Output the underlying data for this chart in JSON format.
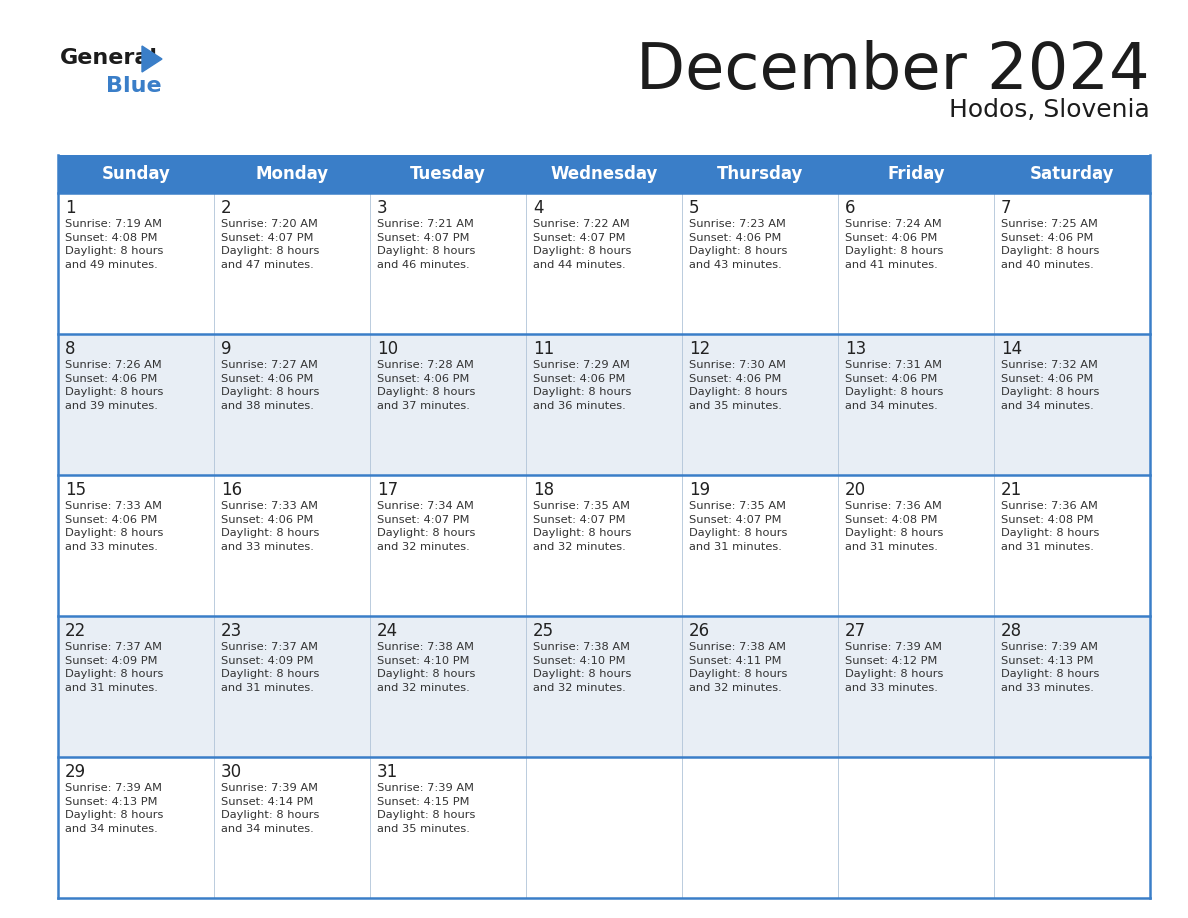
{
  "title": "December 2024",
  "subtitle": "Hodos, Slovenia",
  "header_color": "#3a7ec8",
  "header_text_color": "#ffffff",
  "bg_color": "#ffffff",
  "cell_bg_even": "#e8eef5",
  "cell_bg_odd": "#ffffff",
  "border_color": "#3a7ec8",
  "inner_border_color": "#aec6e0",
  "day_headers": [
    "Sunday",
    "Monday",
    "Tuesday",
    "Wednesday",
    "Thursday",
    "Friday",
    "Saturday"
  ],
  "weeks": [
    [
      {
        "day": 1,
        "sunrise": "7:19 AM",
        "sunset": "4:08 PM",
        "daylight": "8 hours\nand 49 minutes."
      },
      {
        "day": 2,
        "sunrise": "7:20 AM",
        "sunset": "4:07 PM",
        "daylight": "8 hours\nand 47 minutes."
      },
      {
        "day": 3,
        "sunrise": "7:21 AM",
        "sunset": "4:07 PM",
        "daylight": "8 hours\nand 46 minutes."
      },
      {
        "day": 4,
        "sunrise": "7:22 AM",
        "sunset": "4:07 PM",
        "daylight": "8 hours\nand 44 minutes."
      },
      {
        "day": 5,
        "sunrise": "7:23 AM",
        "sunset": "4:06 PM",
        "daylight": "8 hours\nand 43 minutes."
      },
      {
        "day": 6,
        "sunrise": "7:24 AM",
        "sunset": "4:06 PM",
        "daylight": "8 hours\nand 41 minutes."
      },
      {
        "day": 7,
        "sunrise": "7:25 AM",
        "sunset": "4:06 PM",
        "daylight": "8 hours\nand 40 minutes."
      }
    ],
    [
      {
        "day": 8,
        "sunrise": "7:26 AM",
        "sunset": "4:06 PM",
        "daylight": "8 hours\nand 39 minutes."
      },
      {
        "day": 9,
        "sunrise": "7:27 AM",
        "sunset": "4:06 PM",
        "daylight": "8 hours\nand 38 minutes."
      },
      {
        "day": 10,
        "sunrise": "7:28 AM",
        "sunset": "4:06 PM",
        "daylight": "8 hours\nand 37 minutes."
      },
      {
        "day": 11,
        "sunrise": "7:29 AM",
        "sunset": "4:06 PM",
        "daylight": "8 hours\nand 36 minutes."
      },
      {
        "day": 12,
        "sunrise": "7:30 AM",
        "sunset": "4:06 PM",
        "daylight": "8 hours\nand 35 minutes."
      },
      {
        "day": 13,
        "sunrise": "7:31 AM",
        "sunset": "4:06 PM",
        "daylight": "8 hours\nand 34 minutes."
      },
      {
        "day": 14,
        "sunrise": "7:32 AM",
        "sunset": "4:06 PM",
        "daylight": "8 hours\nand 34 minutes."
      }
    ],
    [
      {
        "day": 15,
        "sunrise": "7:33 AM",
        "sunset": "4:06 PM",
        "daylight": "8 hours\nand 33 minutes."
      },
      {
        "day": 16,
        "sunrise": "7:33 AM",
        "sunset": "4:06 PM",
        "daylight": "8 hours\nand 33 minutes."
      },
      {
        "day": 17,
        "sunrise": "7:34 AM",
        "sunset": "4:07 PM",
        "daylight": "8 hours\nand 32 minutes."
      },
      {
        "day": 18,
        "sunrise": "7:35 AM",
        "sunset": "4:07 PM",
        "daylight": "8 hours\nand 32 minutes."
      },
      {
        "day": 19,
        "sunrise": "7:35 AM",
        "sunset": "4:07 PM",
        "daylight": "8 hours\nand 31 minutes."
      },
      {
        "day": 20,
        "sunrise": "7:36 AM",
        "sunset": "4:08 PM",
        "daylight": "8 hours\nand 31 minutes."
      },
      {
        "day": 21,
        "sunrise": "7:36 AM",
        "sunset": "4:08 PM",
        "daylight": "8 hours\nand 31 minutes."
      }
    ],
    [
      {
        "day": 22,
        "sunrise": "7:37 AM",
        "sunset": "4:09 PM",
        "daylight": "8 hours\nand 31 minutes."
      },
      {
        "day": 23,
        "sunrise": "7:37 AM",
        "sunset": "4:09 PM",
        "daylight": "8 hours\nand 31 minutes."
      },
      {
        "day": 24,
        "sunrise": "7:38 AM",
        "sunset": "4:10 PM",
        "daylight": "8 hours\nand 32 minutes."
      },
      {
        "day": 25,
        "sunrise": "7:38 AM",
        "sunset": "4:10 PM",
        "daylight": "8 hours\nand 32 minutes."
      },
      {
        "day": 26,
        "sunrise": "7:38 AM",
        "sunset": "4:11 PM",
        "daylight": "8 hours\nand 32 minutes."
      },
      {
        "day": 27,
        "sunrise": "7:39 AM",
        "sunset": "4:12 PM",
        "daylight": "8 hours\nand 33 minutes."
      },
      {
        "day": 28,
        "sunrise": "7:39 AM",
        "sunset": "4:13 PM",
        "daylight": "8 hours\nand 33 minutes."
      }
    ],
    [
      {
        "day": 29,
        "sunrise": "7:39 AM",
        "sunset": "4:13 PM",
        "daylight": "8 hours\nand 34 minutes."
      },
      {
        "day": 30,
        "sunrise": "7:39 AM",
        "sunset": "4:14 PM",
        "daylight": "8 hours\nand 34 minutes."
      },
      {
        "day": 31,
        "sunrise": "7:39 AM",
        "sunset": "4:15 PM",
        "daylight": "8 hours\nand 35 minutes."
      },
      null,
      null,
      null,
      null
    ]
  ]
}
